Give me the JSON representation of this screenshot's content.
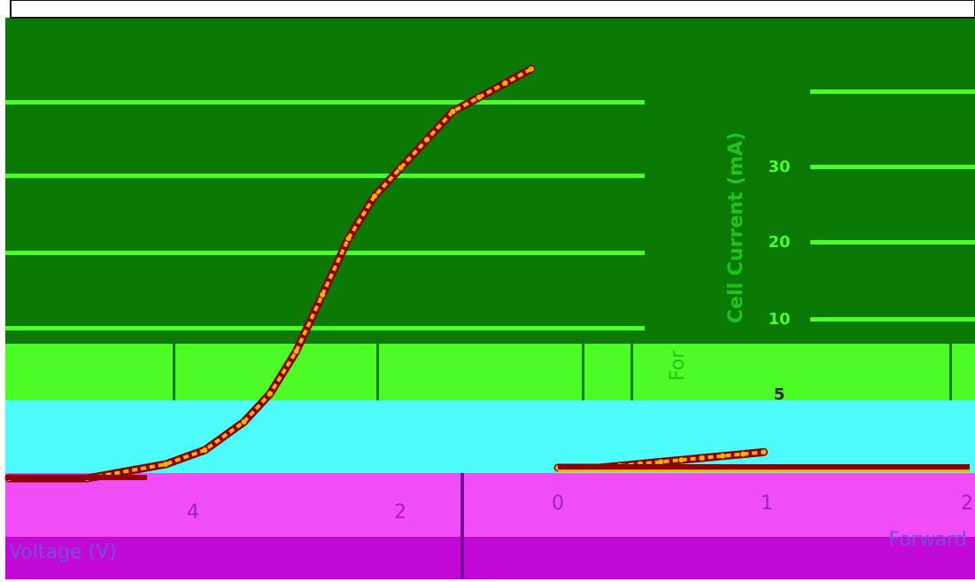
{
  "chart_data": [
    {
      "type": "line",
      "title": "",
      "xlabel": "",
      "ylabel": "",
      "x": [
        0.0,
        0.6,
        1.2,
        1.5,
        1.8,
        2.0,
        2.2,
        2.4,
        2.6,
        2.8,
        3.0,
        3.2,
        3.4,
        3.6,
        3.8,
        4.0
      ],
      "series": [
        {
          "values": [
            0,
            0,
            1,
            2,
            4,
            6,
            9,
            13,
            17,
            20,
            22,
            24,
            26,
            27,
            28,
            29
          ]
        }
      ],
      "xlim": [
        0,
        4
      ],
      "ylim": [
        0,
        30
      ],
      "ytick_labels": [
        "30"
      ]
    },
    {
      "type": "line",
      "title": "",
      "xlabel": "Forward",
      "ylabel": "Cell Current (mA)",
      "x": [
        0.0,
        0.2,
        0.4,
        0.6,
        0.8,
        1.0,
        1.2,
        1.4,
        1.6,
        1.8,
        2.0
      ],
      "series": [
        {
          "values": [
            0,
            0,
            0,
            1,
            2,
            3,
            4,
            5,
            6,
            7,
            8
          ]
        }
      ],
      "xlim": [
        0,
        4
      ],
      "ylim": [
        0,
        40
      ],
      "xtick_labels": [
        "0",
        "1",
        "2"
      ],
      "ytick_labels": [
        "5",
        "10",
        "20",
        "30"
      ]
    }
  ],
  "page": {
    "corner_label": "30",
    "bottom_left_label": "Voltage (V)",
    "bottom_right_label": "Forward"
  },
  "colors": {
    "band_green": "#0a7a05",
    "band_lime": "#4dfb26",
    "band_cyan": "#4dfbfb",
    "band_magenta": "#f04df7",
    "band_purple": "#c20ad6",
    "curve_dark": "#8b0000",
    "curve_light": "#ffb000",
    "text_lime": "#4dfb26",
    "text_dark": "#222222"
  }
}
